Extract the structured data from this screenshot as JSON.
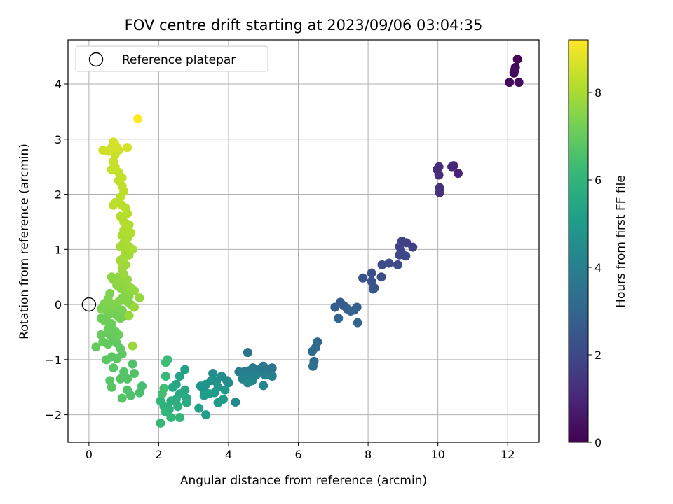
{
  "chart_data": {
    "type": "scatter",
    "title": "FOV centre drift starting at 2023/09/06 03:04:35",
    "xlabel": "Angular distance from reference (arcmin)",
    "ylabel": "Rotation from reference (arcmin)",
    "xlim": [
      -0.6,
      12.9
    ],
    "ylim": [
      -2.5,
      4.8
    ],
    "xticks": [
      "0",
      "2",
      "4",
      "6",
      "8",
      "10",
      "12"
    ],
    "yticks": [
      "−2",
      "−1",
      "0",
      "1",
      "2",
      "3",
      "4"
    ],
    "grid": true,
    "legend": {
      "placement": "top-left",
      "entries": [
        "Reference platepar"
      ]
    },
    "reference_point": {
      "x": 0.0,
      "y": 0.0,
      "label": "Reference platepar"
    },
    "colorbar": {
      "label": "Hours from first FF file",
      "range": [
        0,
        9.2
      ],
      "ticks": [
        "0",
        "2",
        "4",
        "6",
        "8"
      ],
      "colormap": "viridis",
      "colors": [
        "#440154",
        "#482878",
        "#3e4a89",
        "#31688e",
        "#26828e",
        "#1f9e89",
        "#35b779",
        "#6ece58",
        "#b5de2b",
        "#fde725"
      ]
    },
    "series": [
      {
        "points": [
          [
            12.28,
            4.45,
            0.05
          ],
          [
            12.22,
            4.3,
            0.1
          ],
          [
            12.18,
            4.2,
            0.15
          ],
          [
            12.05,
            4.03,
            0.2
          ],
          [
            12.32,
            4.03,
            0.25
          ],
          [
            12.2,
            4.25,
            0.3
          ],
          [
            10.58,
            2.38,
            0.9
          ],
          [
            10.4,
            2.5,
            1.0
          ],
          [
            10.45,
            2.52,
            1.05
          ],
          [
            9.98,
            2.45,
            1.1
          ],
          [
            10.03,
            2.5,
            1.15
          ],
          [
            10.03,
            2.35,
            1.2
          ],
          [
            10.05,
            2.12,
            1.25
          ],
          [
            10.05,
            2.03,
            1.3
          ],
          [
            9.28,
            1.04,
            1.7
          ],
          [
            9.1,
            1.12,
            1.75
          ],
          [
            8.97,
            1.15,
            1.8
          ],
          [
            8.9,
            1.05,
            1.85
          ],
          [
            8.95,
            0.95,
            1.9
          ],
          [
            8.9,
            0.9,
            1.95
          ],
          [
            9.08,
            0.88,
            2.0
          ],
          [
            8.85,
            0.72,
            2.05
          ],
          [
            8.6,
            0.75,
            2.1
          ],
          [
            8.4,
            0.72,
            2.15
          ],
          [
            8.38,
            0.5,
            2.2
          ],
          [
            8.1,
            0.57,
            2.25
          ],
          [
            7.85,
            0.48,
            2.3
          ],
          [
            8.1,
            0.42,
            2.35
          ],
          [
            8.18,
            0.3,
            2.4
          ],
          [
            8.15,
            0.28,
            2.45
          ],
          [
            7.2,
            0.04,
            2.6
          ],
          [
            7.3,
            -0.02,
            2.65
          ],
          [
            7.05,
            -0.05,
            2.7
          ],
          [
            7.4,
            -0.08,
            2.75
          ],
          [
            7.6,
            -0.1,
            2.8
          ],
          [
            7.68,
            -0.05,
            2.85
          ],
          [
            7.5,
            -0.12,
            2.9
          ],
          [
            7.15,
            -0.25,
            2.95
          ],
          [
            7.7,
            -0.33,
            3.0
          ],
          [
            6.55,
            -0.68,
            3.1
          ],
          [
            6.5,
            -0.78,
            3.15
          ],
          [
            6.4,
            -0.85,
            3.2
          ],
          [
            6.45,
            -1.03,
            3.25
          ],
          [
            6.42,
            -1.12,
            3.3
          ],
          [
            4.55,
            -0.87,
            3.5
          ],
          [
            5.25,
            -1.15,
            3.55
          ],
          [
            5.1,
            -1.2,
            3.6
          ],
          [
            5.0,
            -1.12,
            3.65
          ],
          [
            4.9,
            -1.18,
            3.7
          ],
          [
            4.7,
            -1.15,
            3.75
          ],
          [
            4.6,
            -1.2,
            3.8
          ],
          [
            4.45,
            -1.22,
            3.85
          ],
          [
            4.3,
            -1.22,
            3.9
          ],
          [
            5.25,
            -1.3,
            3.95
          ],
          [
            5.05,
            -1.28,
            4.0
          ],
          [
            4.8,
            -1.27,
            4.05
          ],
          [
            4.55,
            -1.3,
            4.1
          ],
          [
            4.4,
            -1.35,
            4.15
          ],
          [
            4.68,
            -1.38,
            4.2
          ],
          [
            5.0,
            -1.47,
            4.25
          ],
          [
            4.55,
            -1.42,
            4.3
          ],
          [
            4.2,
            -1.77,
            4.35
          ],
          [
            4.0,
            -1.42,
            4.4
          ],
          [
            3.95,
            -1.38,
            4.45
          ],
          [
            3.8,
            -1.3,
            4.5
          ],
          [
            3.55,
            -1.25,
            4.55
          ],
          [
            3.65,
            -1.4,
            4.6
          ],
          [
            3.5,
            -1.38,
            4.65
          ],
          [
            3.35,
            -1.45,
            4.7
          ],
          [
            3.2,
            -1.48,
            4.75
          ],
          [
            3.3,
            -1.55,
            4.8
          ],
          [
            3.7,
            -1.5,
            4.85
          ],
          [
            3.9,
            -1.55,
            4.9
          ],
          [
            3.6,
            -1.6,
            4.95
          ],
          [
            3.85,
            -1.72,
            5.0
          ],
          [
            3.7,
            -1.78,
            5.05
          ],
          [
            3.45,
            -1.62,
            5.1
          ],
          [
            3.3,
            -1.65,
            5.15
          ],
          [
            3.35,
            -2.0,
            5.2
          ],
          [
            3.15,
            -1.88,
            5.25
          ],
          [
            2.75,
            -1.18,
            5.3
          ],
          [
            2.6,
            -1.3,
            5.35
          ],
          [
            2.5,
            -1.45,
            5.4
          ],
          [
            2.4,
            -1.5,
            5.45
          ],
          [
            2.75,
            -1.55,
            5.5
          ],
          [
            2.6,
            -1.62,
            5.55
          ],
          [
            2.8,
            -1.7,
            5.6
          ],
          [
            2.8,
            -1.78,
            5.65
          ],
          [
            2.5,
            -1.72,
            5.7
          ],
          [
            2.35,
            -1.75,
            5.75
          ],
          [
            2.55,
            -1.85,
            5.8
          ],
          [
            2.3,
            -1.9,
            5.85
          ],
          [
            2.15,
            -1.85,
            5.9
          ],
          [
            2.05,
            -1.75,
            5.95
          ],
          [
            2.2,
            -1.95,
            6.0
          ],
          [
            2.6,
            -2.05,
            6.05
          ],
          [
            2.35,
            -2.05,
            6.1
          ],
          [
            2.05,
            -2.15,
            6.15
          ],
          [
            2.2,
            -1.3,
            6.2
          ],
          [
            2.25,
            -1.0,
            6.25
          ],
          [
            2.2,
            -1.05,
            6.3
          ],
          [
            2.15,
            -1.52,
            6.35
          ],
          [
            2.1,
            -1.62,
            6.4
          ],
          [
            1.52,
            -1.48,
            6.45
          ],
          [
            1.45,
            -1.6,
            6.5
          ],
          [
            1.2,
            -1.65,
            6.55
          ],
          [
            1.1,
            -1.55,
            6.6
          ],
          [
            1.3,
            -1.25,
            6.62
          ],
          [
            1.25,
            -1.08,
            6.64
          ],
          [
            1.0,
            -1.22,
            6.66
          ],
          [
            1.1,
            -1.35,
            6.68
          ],
          [
            0.9,
            -1.35,
            6.7
          ],
          [
            0.95,
            -1.7,
            6.72
          ],
          [
            0.65,
            -1.5,
            6.74
          ],
          [
            0.6,
            -1.38,
            6.76
          ],
          [
            0.7,
            -1.15,
            6.78
          ],
          [
            0.5,
            -1.0,
            6.8
          ],
          [
            0.65,
            -0.95,
            6.82
          ],
          [
            0.8,
            -0.98,
            6.84
          ],
          [
            0.95,
            -0.9,
            6.86
          ],
          [
            0.9,
            -0.8,
            6.88
          ],
          [
            0.8,
            -0.7,
            6.9
          ],
          [
            0.7,
            -0.65,
            6.92
          ],
          [
            0.55,
            -0.72,
            6.94
          ],
          [
            0.4,
            -0.68,
            6.96
          ],
          [
            0.2,
            -0.77,
            6.98
          ],
          [
            0.35,
            -0.55,
            7.0
          ],
          [
            0.6,
            -0.55,
            7.02
          ],
          [
            0.75,
            -0.48,
            7.04
          ],
          [
            0.85,
            -0.55,
            7.06
          ],
          [
            0.55,
            -0.45,
            7.08
          ],
          [
            0.65,
            -0.35,
            7.1
          ],
          [
            0.45,
            -0.3,
            7.12
          ],
          [
            0.35,
            -0.25,
            7.14
          ],
          [
            0.55,
            -0.2,
            7.16
          ],
          [
            0.7,
            -0.15,
            7.18
          ],
          [
            0.8,
            -0.2,
            7.2
          ],
          [
            0.9,
            -0.25,
            7.22
          ],
          [
            1.05,
            -0.2,
            7.24
          ],
          [
            0.95,
            -0.1,
            7.26
          ],
          [
            0.8,
            -0.05,
            7.28
          ],
          [
            0.65,
            -0.08,
            7.3
          ],
          [
            0.5,
            -0.1,
            7.32
          ],
          [
            0.35,
            -0.08,
            7.34
          ],
          [
            0.45,
            0.02,
            7.36
          ],
          [
            0.55,
            0.1,
            7.38
          ],
          [
            0.6,
            0.2,
            7.4
          ],
          [
            0.7,
            0.0,
            7.42
          ],
          [
            0.85,
            0.05,
            7.44
          ],
          [
            0.95,
            0.12,
            7.46
          ],
          [
            1.1,
            0.05,
            7.48
          ],
          [
            1.2,
            0.0,
            7.5
          ],
          [
            1.15,
            0.15,
            7.52
          ],
          [
            1.05,
            0.25,
            7.54
          ],
          [
            0.9,
            0.3,
            7.56
          ],
          [
            0.8,
            0.35,
            7.58
          ],
          [
            0.7,
            0.45,
            7.6
          ],
          [
            0.65,
            0.5,
            7.62
          ],
          [
            0.85,
            0.5,
            7.64
          ],
          [
            1.0,
            0.4,
            7.66
          ],
          [
            1.1,
            0.45,
            7.68
          ],
          [
            1.2,
            0.3,
            7.7
          ],
          [
            1.3,
            0.25,
            7.72
          ],
          [
            1.45,
            0.12,
            7.74
          ],
          [
            1.3,
            -0.05,
            7.76
          ],
          [
            1.15,
            -0.2,
            7.78
          ],
          [
            1.25,
            -0.75,
            7.8
          ],
          [
            1.0,
            0.55,
            7.82
          ],
          [
            0.95,
            0.65,
            7.84
          ],
          [
            1.05,
            0.72,
            7.86
          ],
          [
            0.9,
            0.8,
            7.88
          ],
          [
            1.0,
            0.85,
            7.9
          ],
          [
            1.15,
            0.9,
            7.92
          ],
          [
            1.05,
            0.95,
            7.94
          ],
          [
            0.9,
            1.05,
            7.96
          ],
          [
            1.0,
            1.12,
            7.98
          ],
          [
            1.15,
            1.05,
            8.0
          ],
          [
            1.25,
            1.0,
            8.02
          ],
          [
            1.1,
            1.2,
            8.04
          ],
          [
            0.95,
            1.25,
            8.06
          ],
          [
            1.0,
            1.35,
            8.08
          ],
          [
            1.2,
            1.3,
            8.1
          ],
          [
            1.15,
            1.45,
            8.12
          ],
          [
            1.0,
            1.5,
            8.14
          ],
          [
            0.9,
            1.6,
            8.16
          ],
          [
            1.1,
            1.65,
            8.18
          ],
          [
            1.05,
            1.75,
            8.2
          ],
          [
            0.95,
            1.8,
            8.22
          ],
          [
            0.75,
            1.85,
            8.24
          ],
          [
            0.7,
            1.8,
            8.26
          ],
          [
            0.9,
            1.95,
            8.28
          ],
          [
            1.0,
            2.05,
            8.3
          ],
          [
            0.95,
            2.15,
            8.32
          ],
          [
            0.85,
            2.25,
            8.34
          ],
          [
            0.95,
            2.3,
            8.36
          ],
          [
            0.85,
            2.4,
            8.38
          ],
          [
            0.75,
            2.5,
            8.4
          ],
          [
            0.65,
            2.45,
            8.42
          ],
          [
            0.7,
            2.6,
            8.44
          ],
          [
            0.75,
            2.72,
            8.46
          ],
          [
            0.85,
            2.8,
            8.48
          ],
          [
            0.75,
            2.9,
            8.5
          ],
          [
            0.65,
            2.85,
            8.52
          ],
          [
            0.55,
            2.78,
            8.54
          ],
          [
            0.4,
            2.8,
            8.56
          ],
          [
            0.7,
            2.95,
            8.58
          ],
          [
            0.8,
            2.85,
            8.6
          ],
          [
            1.1,
            2.85,
            8.62
          ],
          [
            1.4,
            3.37,
            9.2
          ]
        ]
      }
    ]
  }
}
